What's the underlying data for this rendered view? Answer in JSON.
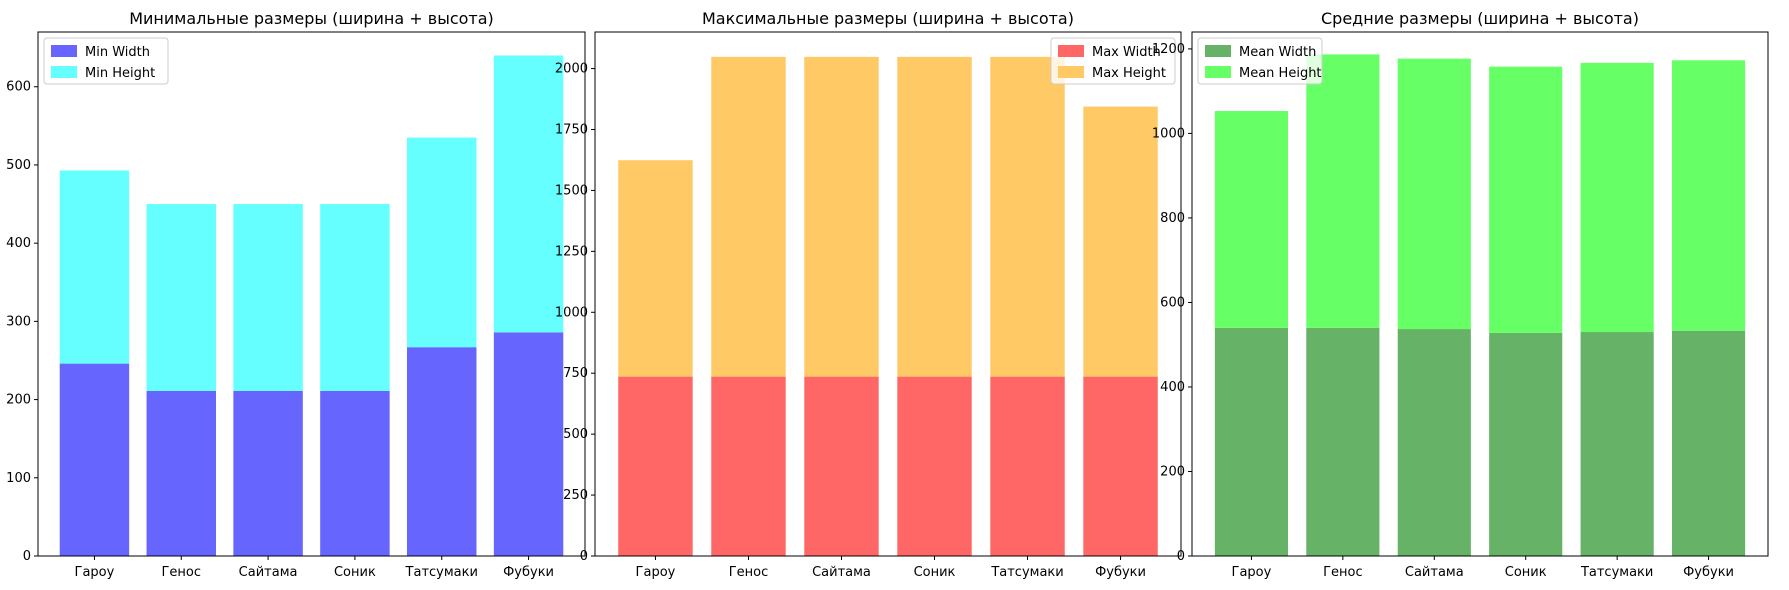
{
  "chart_data": [
    {
      "type": "bar",
      "stacked": true,
      "title": "Минимальные размеры (ширина + высота)",
      "xlabel": "",
      "ylabel": "",
      "categories": [
        "Гароу",
        "Генос",
        "Сайтама",
        "Соник",
        "Татсумаки",
        "Фубуки"
      ],
      "series": [
        {
          "name": "Min Width",
          "color": "#6666ff",
          "values": [
            246,
            211,
            211,
            211,
            267,
            286
          ]
        },
        {
          "name": "Min Height",
          "color": "#66ffff",
          "values": [
            247,
            239,
            239,
            239,
            268,
            354
          ]
        }
      ],
      "ylim": [
        0,
        670
      ],
      "yticks": [
        0,
        100,
        200,
        300,
        400,
        500,
        600
      ],
      "legend_position": "top-left",
      "grid": false
    },
    {
      "type": "bar",
      "stacked": true,
      "title": "Максимальные размеры (ширина + высота)",
      "xlabel": "",
      "ylabel": "",
      "categories": [
        "Гароу",
        "Генос",
        "Сайтама",
        "Соник",
        "Татсумаки",
        "Фубуки"
      ],
      "series": [
        {
          "name": "Max Width",
          "color": "#ff6666",
          "values": [
            736,
            736,
            736,
            736,
            736,
            736
          ]
        },
        {
          "name": "Max Height",
          "color": "#ffc966",
          "values": [
            888,
            1312,
            1312,
            1312,
            1312,
            1108
          ]
        }
      ],
      "ylim": [
        0,
        2150
      ],
      "yticks": [
        0,
        250,
        500,
        750,
        1000,
        1250,
        1500,
        1750,
        2000
      ],
      "legend_position": "top-right",
      "grid": false
    },
    {
      "type": "bar",
      "stacked": true,
      "title": "Средние размеры (ширина + высота)",
      "xlabel": "",
      "ylabel": "",
      "categories": [
        "Гароу",
        "Генос",
        "Сайтама",
        "Соник",
        "Татсумаки",
        "Фубуки"
      ],
      "series": [
        {
          "name": "Mean Width",
          "color": "#66b266",
          "values": [
            540,
            540,
            537,
            528,
            530,
            533
          ]
        },
        {
          "name": "Mean Height",
          "color": "#66ff66",
          "values": [
            513,
            647,
            640,
            630,
            637,
            640
          ]
        }
      ],
      "ylim": [
        0,
        1240
      ],
      "yticks": [
        0,
        200,
        400,
        600,
        800,
        1000,
        1200
      ],
      "legend_position": "top-left",
      "grid": false
    }
  ]
}
